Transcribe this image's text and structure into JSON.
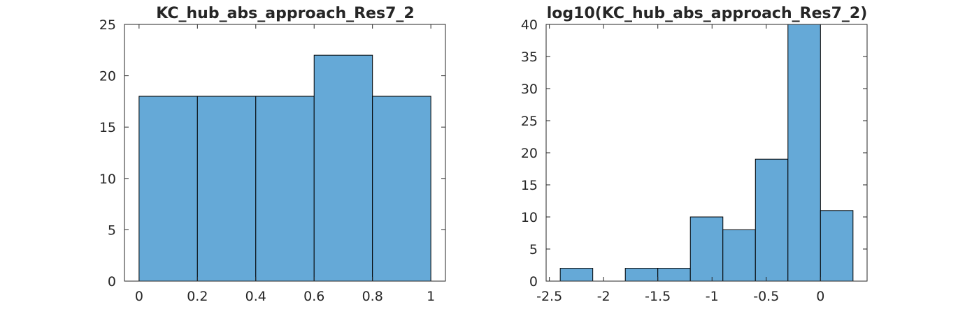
{
  "figure": {
    "background": "#ffffff",
    "bar_color": "#65a9d7",
    "edge_color": "#000000",
    "text_color": "#262626"
  },
  "chart_data": [
    {
      "type": "bar",
      "title": "KC_hub_abs_approach_Res7_2",
      "xlabel": "",
      "ylabel": "",
      "bin_edges": [
        0,
        0.2,
        0.4,
        0.6,
        0.8,
        1.0
      ],
      "counts": [
        18,
        18,
        18,
        22,
        18
      ],
      "xlim": [
        -0.05,
        1.05
      ],
      "ylim": [
        0,
        25
      ],
      "xticks": [
        0,
        0.2,
        0.4,
        0.6,
        0.8,
        1
      ],
      "xtick_labels": [
        "0",
        "0.2",
        "0.4",
        "0.6",
        "0.8",
        "1"
      ],
      "yticks": [
        0,
        5,
        10,
        15,
        20,
        25
      ],
      "ytick_labels": [
        "0",
        "5",
        "10",
        "15",
        "20",
        "25"
      ],
      "grid": false
    },
    {
      "type": "bar",
      "title": "log10(KC_hub_abs_approach_Res7_2)",
      "xlabel": "",
      "ylabel": "",
      "bin_edges": [
        -2.4,
        -2.1,
        -1.8,
        -1.5,
        -1.2,
        -0.9,
        -0.6,
        -0.3,
        0.0,
        0.3
      ],
      "counts": [
        2,
        0,
        2,
        2,
        10,
        8,
        19,
        40,
        11
      ],
      "xlim": [
        -2.53,
        0.43
      ],
      "ylim": [
        0,
        40
      ],
      "xticks": [
        -2.5,
        -2,
        -1.5,
        -1,
        -0.5,
        0
      ],
      "xtick_labels": [
        "-2.5",
        "-2",
        "-1.5",
        "-1",
        "-0.5",
        "0"
      ],
      "yticks": [
        0,
        5,
        10,
        15,
        20,
        25,
        30,
        35,
        40
      ],
      "ytick_labels": [
        "0",
        "5",
        "10",
        "15",
        "20",
        "25",
        "30",
        "35",
        "40"
      ],
      "grid": false
    }
  ]
}
